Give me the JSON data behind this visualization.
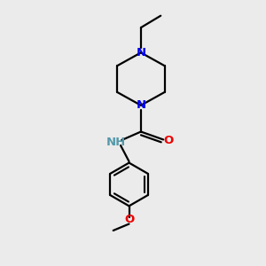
{
  "bg_color": "#ebebeb",
  "bond_color": "#000000",
  "N_color": "#0000ee",
  "O_color": "#ee0000",
  "NH_color": "#5599aa",
  "line_width": 1.6,
  "font_size": 9.5,
  "fig_size": [
    3.0,
    3.0
  ],
  "dpi": 100,
  "xlim": [
    0,
    10
  ],
  "ylim": [
    0,
    10
  ]
}
